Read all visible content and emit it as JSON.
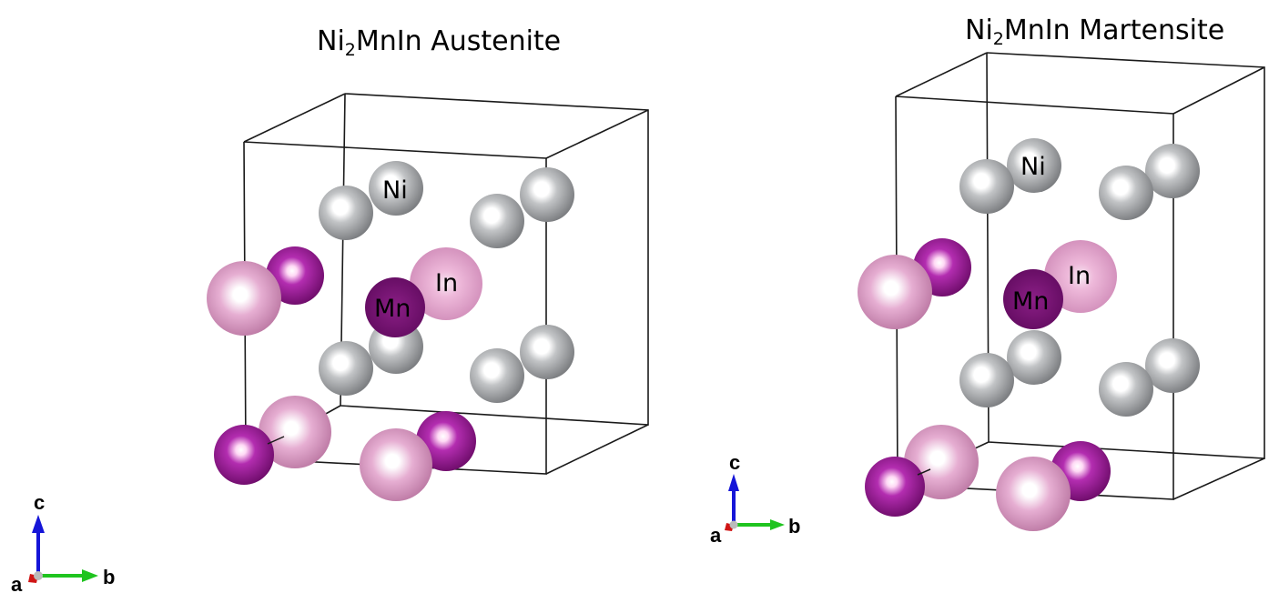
{
  "panels": {
    "left": {
      "formula_prefix": "Ni",
      "formula_sub": "2",
      "formula_suffix": "MnIn",
      "phase": "Austenite"
    },
    "right": {
      "formula_prefix": "Ni",
      "formula_sub": "2",
      "formula_suffix": "MnIn",
      "phase": "Martensite"
    }
  },
  "atom_labels": {
    "ni": "Ni",
    "mn": "Mn",
    "in": "In"
  },
  "axes": {
    "a": "a",
    "b": "b",
    "c": "c"
  },
  "colors": {
    "ni": "#aeb0b2",
    "mn": "#8a1888",
    "mn_dark": "#6a0c6a",
    "in": "#d486bc",
    "in_light": "#e2a8cc",
    "axis_c": "#1515d8",
    "axis_b": "#1fc41f",
    "axis_a": "#d01515"
  }
}
